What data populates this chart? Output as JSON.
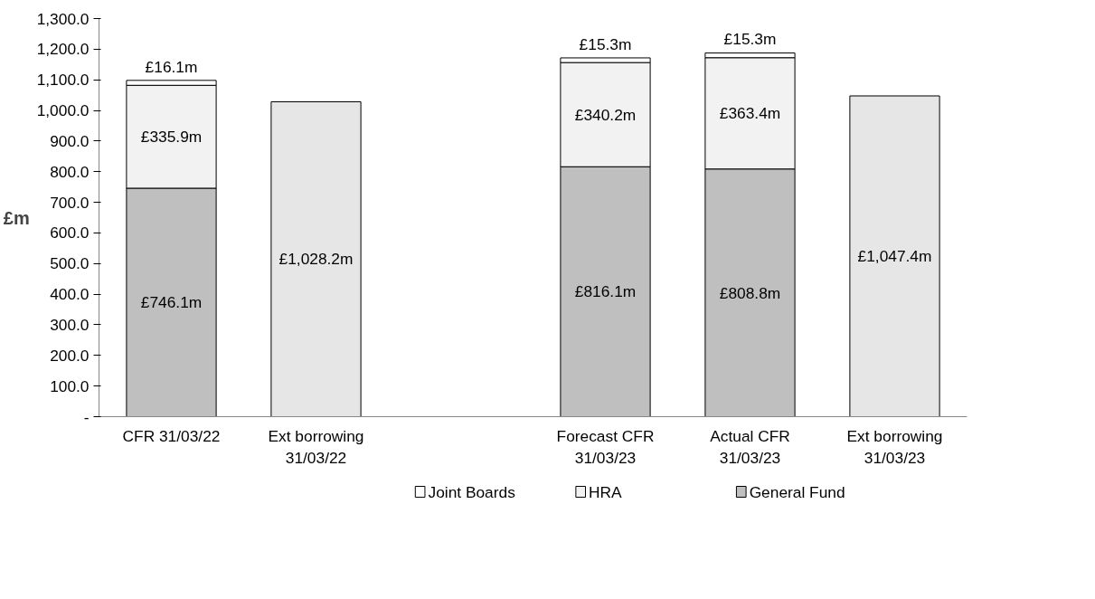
{
  "chart_data": {
    "type": "bar",
    "stacked": true,
    "ylabel": "£m",
    "categories": [
      "CFR 31/03/22",
      "Ext borrowing\n31/03/22",
      null,
      "Forecast CFR\n31/03/23",
      "Actual CFR\n31/03/23",
      "Ext borrowing\n31/03/23"
    ],
    "series": [
      {
        "name": "General Fund",
        "color": "#bfbfbf",
        "values": [
          746.1,
          null,
          null,
          816.1,
          808.8,
          null
        ],
        "value_labels": [
          "£746.1m",
          null,
          null,
          "£816.1m",
          "£808.8m",
          null
        ]
      },
      {
        "name": "HRA",
        "color": "#f2f2f2",
        "values": [
          335.9,
          null,
          null,
          340.2,
          363.4,
          null
        ],
        "value_labels": [
          "£335.9m",
          null,
          null,
          "£340.2m",
          "£363.4m",
          null
        ]
      },
      {
        "name": "Joint Boards",
        "color": "#ffffff",
        "values": [
          16.1,
          null,
          null,
          15.3,
          15.3,
          null
        ],
        "value_labels": [
          "£16.1m",
          null,
          null,
          "£15.3m",
          "£15.3m",
          null
        ]
      },
      {
        "color": "#e6e6e6",
        "values": [
          null,
          1028.2,
          null,
          null,
          null,
          1047.4
        ],
        "value_labels": [
          null,
          "£1,028.2m",
          null,
          null,
          null,
          "£1,047.4m"
        ]
      }
    ],
    "ylim": [
      0,
      1300
    ],
    "yticks": [
      {
        "value": 0,
        "label": "-"
      },
      {
        "value": 100,
        "label": "100.0"
      },
      {
        "value": 200,
        "label": "200.0"
      },
      {
        "value": 300,
        "label": "300.0"
      },
      {
        "value": 400,
        "label": "400.0"
      },
      {
        "value": 500,
        "label": "500.0"
      },
      {
        "value": 600,
        "label": "600.0"
      },
      {
        "value": 700,
        "label": "700.0"
      },
      {
        "value": 800,
        "label": "800.0"
      },
      {
        "value": 900,
        "label": "900.0"
      },
      {
        "value": 1000,
        "label": "1,000.0"
      },
      {
        "value": 1100,
        "label": "1,100.0"
      },
      {
        "value": 1200,
        "label": "1,200.0"
      },
      {
        "value": 1300,
        "label": "1,300.0"
      }
    ],
    "grid": false,
    "legend": "bottom"
  }
}
